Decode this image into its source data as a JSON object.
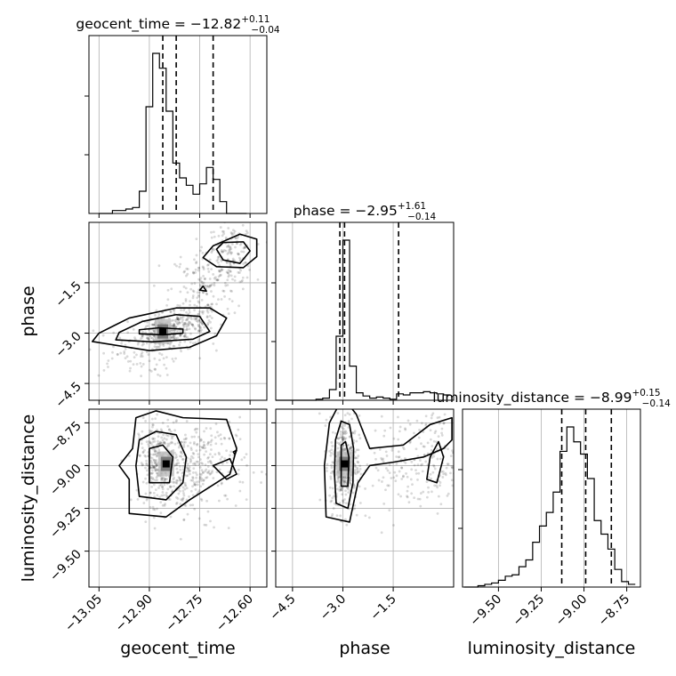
{
  "chart_data": {
    "type": "corner",
    "parameters": [
      "geocent_time",
      "phase",
      "luminosity_distance"
    ],
    "titles": [
      {
        "name": "geocent_time",
        "median": "−12.82",
        "plus": "+0.11",
        "minus": "−0.04"
      },
      {
        "name": "phase",
        "median": "−2.95",
        "plus": "+1.61",
        "minus": "−0.14"
      },
      {
        "name": "luminosity_distance",
        "median": "−8.99",
        "plus": "+0.15",
        "minus": "−0.14"
      }
    ],
    "axis_labels": {
      "x": [
        "geocent_time",
        "phase",
        "luminosity_distance"
      ],
      "y": [
        "phase",
        "luminosity_distance"
      ]
    },
    "ranges": {
      "geocent_time": [
        -13.08,
        -12.55
      ],
      "phase": [
        -5.0,
        0.3
      ],
      "luminosity_distance": [
        -9.71,
        -8.67
      ]
    },
    "ticks": {
      "geocent_time": {
        "values": [
          -13.05,
          -12.9,
          -12.75,
          -12.6
        ],
        "labels": [
          "−13.05",
          "−12.90",
          "−12.75",
          "−12.60"
        ]
      },
      "phase": {
        "values": [
          -4.5,
          -3.0,
          -1.5
        ],
        "labels": [
          "−4.5",
          "−3.0",
          "−1.5"
        ]
      },
      "luminosity_distance": {
        "values": [
          -9.5,
          -9.25,
          -9.0,
          -8.75
        ],
        "labels": [
          "−9.50",
          "−9.25",
          "−9.00",
          "−8.75"
        ]
      }
    },
    "quantiles": {
      "geocent_time": [
        -12.86,
        -12.82,
        -12.71
      ],
      "phase": [
        -3.09,
        -2.95,
        -1.34
      ],
      "luminosity_distance": [
        -9.13,
        -8.99,
        -8.84
      ]
    },
    "histograms": {
      "geocent_time": {
        "edges": [
          -13.05,
          -13.03,
          -13.01,
          -12.99,
          -12.97,
          -12.95,
          -12.93,
          -12.91,
          -12.89,
          -12.87,
          -12.85,
          -12.83,
          -12.81,
          -12.79,
          -12.77,
          -12.75,
          -12.73,
          -12.71,
          -12.69,
          -12.67,
          -12.65,
          -12.63,
          -12.61
        ],
        "counts": [
          0,
          0,
          2,
          2,
          3,
          4,
          15,
          72,
          108,
          98,
          69,
          34,
          24,
          19,
          13,
          20,
          31,
          23,
          8,
          0,
          0,
          0
        ]
      },
      "phase": {
        "edges": [
          -5.0,
          -4.8,
          -4.6,
          -4.4,
          -4.2,
          -4.0,
          -3.8,
          -3.6,
          -3.4,
          -3.2,
          -3.0,
          -2.8,
          -2.6,
          -2.4,
          -2.2,
          -2.0,
          -1.8,
          -1.6,
          -1.4,
          -1.2,
          -1.0,
          -0.8,
          -0.6,
          -0.4,
          -0.2,
          0.0,
          0.2
        ],
        "counts": [
          0,
          0,
          0,
          0,
          0,
          0,
          1,
          2,
          10,
          60,
          150,
          32,
          7,
          4,
          2,
          3,
          2,
          1,
          6,
          5,
          7,
          7,
          8,
          7,
          6,
          5
        ]
      },
      "luminosity_distance": {
        "edges": [
          -9.7,
          -9.66,
          -9.62,
          -9.58,
          -9.54,
          -9.5,
          -9.46,
          -9.42,
          -9.38,
          -9.34,
          -9.3,
          -9.26,
          -9.22,
          -9.18,
          -9.14,
          -9.1,
          -9.06,
          -9.02,
          -8.98,
          -8.94,
          -8.9,
          -8.86,
          -8.82,
          -8.78,
          -8.74,
          -8.7
        ],
        "counts": [
          0,
          0,
          1,
          2,
          3,
          5,
          8,
          9,
          15,
          20,
          33,
          45,
          55,
          70,
          100,
          118,
          107,
          98,
          80,
          49,
          39,
          28,
          13,
          4,
          2
        ]
      }
    },
    "samples": {
      "phase_vs_geocent_time": {
        "clusters": [
          {
            "mean": [
              -12.86,
              -2.95
            ],
            "sd": [
              0.03,
              0.25
            ],
            "n": 260
          },
          {
            "mean": [
              -12.79,
              -2.75
            ],
            "sd": [
              0.04,
              0.3
            ],
            "n": 140
          },
          {
            "mean": [
              -12.66,
              -0.65
            ],
            "sd": [
              0.035,
              0.45
            ],
            "n": 160
          },
          {
            "mean": [
              -12.74,
              -1.75
            ],
            "sd": [
              0.05,
              0.7
            ],
            "n": 160
          },
          {
            "mean": [
              -12.95,
              -3.6
            ],
            "sd": [
              0.07,
              0.35
            ],
            "n": 90
          }
        ],
        "density_peak": [
          -12.86,
          -2.95
        ],
        "contours": [
          [
            [
              -12.93,
              -3.02
            ],
            [
              -12.86,
              -3.05
            ],
            [
              -12.8,
              -3.0
            ],
            [
              -12.8,
              -2.88
            ],
            [
              -12.87,
              -2.84
            ],
            [
              -12.93,
              -2.9
            ]
          ],
          [
            [
              -13.0,
              -3.2
            ],
            [
              -12.89,
              -3.26
            ],
            [
              -12.77,
              -3.18
            ],
            [
              -12.72,
              -2.95
            ],
            [
              -12.75,
              -2.5
            ],
            [
              -12.82,
              -2.45
            ],
            [
              -12.92,
              -2.65
            ],
            [
              -12.99,
              -2.98
            ]
          ],
          [
            [
              -13.07,
              -3.25
            ],
            [
              -12.9,
              -3.52
            ],
            [
              -12.78,
              -3.42
            ],
            [
              -12.7,
              -3.08
            ],
            [
              -12.67,
              -2.55
            ],
            [
              -12.72,
              -2.25
            ],
            [
              -12.82,
              -2.25
            ],
            [
              -12.96,
              -2.55
            ],
            [
              -13.05,
              -3.0
            ]
          ],
          [
            [
              -12.68,
              -0.3
            ],
            [
              -12.62,
              -0.28
            ],
            [
              -12.6,
              -0.55
            ],
            [
              -12.63,
              -0.92
            ],
            [
              -12.68,
              -0.82
            ],
            [
              -12.7,
              -0.5
            ]
          ],
          [
            [
              -12.71,
              -0.4
            ],
            [
              -12.63,
              -0.05
            ],
            [
              -12.58,
              -0.2
            ],
            [
              -12.58,
              -0.72
            ],
            [
              -12.62,
              -1.05
            ],
            [
              -12.7,
              -1.02
            ],
            [
              -12.74,
              -0.75
            ]
          ],
          [
            [
              -12.75,
              -1.72
            ],
            [
              -12.74,
              -1.6
            ],
            [
              -12.73,
              -1.75
            ]
          ]
        ]
      },
      "luminosity_distance_vs_geocent_time": {
        "clusters": [
          {
            "mean": [
              -12.87,
              -8.99
            ],
            "sd": [
              0.03,
              0.12
            ],
            "n": 320
          },
          {
            "mean": [
              -12.73,
              -8.99
            ],
            "sd": [
              0.06,
              0.15
            ],
            "n": 200
          },
          {
            "mean": [
              -12.8,
              -9.05
            ],
            "sd": [
              0.04,
              0.12
            ],
            "n": 140
          }
        ],
        "density_peak": [
          -12.85,
          -8.99
        ],
        "contours": [
          [
            [
              -12.9,
              -9.1
            ],
            [
              -12.84,
              -9.1
            ],
            [
              -12.83,
              -8.95
            ],
            [
              -12.86,
              -8.88
            ],
            [
              -12.9,
              -8.9
            ]
          ],
          [
            [
              -12.93,
              -9.18
            ],
            [
              -12.85,
              -9.2
            ],
            [
              -12.8,
              -9.1
            ],
            [
              -12.79,
              -8.95
            ],
            [
              -12.82,
              -8.82
            ],
            [
              -12.88,
              -8.8
            ],
            [
              -12.93,
              -8.85
            ],
            [
              -12.94,
              -9.0
            ]
          ],
          [
            [
              -12.96,
              -9.28
            ],
            [
              -12.85,
              -9.3
            ],
            [
              -12.78,
              -9.2
            ],
            [
              -12.7,
              -9.1
            ],
            [
              -12.66,
              -9.05
            ],
            [
              -12.64,
              -8.9
            ],
            [
              -12.67,
              -8.73
            ],
            [
              -12.8,
              -8.72
            ],
            [
              -12.88,
              -8.68
            ],
            [
              -12.94,
              -8.72
            ],
            [
              -12.95,
              -8.9
            ],
            [
              -12.99,
              -9.0
            ],
            [
              -12.96,
              -9.08
            ]
          ],
          [
            [
              -12.71,
              -9.0
            ],
            [
              -12.66,
              -8.96
            ],
            [
              -12.64,
              -9.05
            ],
            [
              -12.67,
              -9.08
            ]
          ],
          [
            [
              -12.65,
              -8.92
            ],
            [
              -12.64,
              -8.91
            ],
            [
              -12.645,
              -8.935
            ]
          ]
        ]
      },
      "luminosity_distance_vs_phase": {
        "clusters": [
          {
            "mean": [
              -2.95,
              -8.99
            ],
            "sd": [
              0.22,
              0.14
            ],
            "n": 380
          },
          {
            "mean": [
              -1.0,
              -8.97
            ],
            "sd": [
              0.8,
              0.14
            ],
            "n": 180
          },
          {
            "mean": [
              -0.2,
              -8.95
            ],
            "sd": [
              0.25,
              0.15
            ],
            "n": 60
          }
        ],
        "density_peak": [
          -2.95,
          -8.99
        ],
        "contours": [
          [
            [
              -3.05,
              -9.12
            ],
            [
              -2.85,
              -9.12
            ],
            [
              -2.82,
              -8.95
            ],
            [
              -2.92,
              -8.86
            ],
            [
              -3.05,
              -8.88
            ]
          ],
          [
            [
              -3.2,
              -9.22
            ],
            [
              -2.85,
              -9.25
            ],
            [
              -2.7,
              -9.1
            ],
            [
              -2.68,
              -8.9
            ],
            [
              -2.8,
              -8.76
            ],
            [
              -3.05,
              -8.74
            ],
            [
              -3.22,
              -8.85
            ],
            [
              -3.25,
              -9.05
            ]
          ],
          [
            [
              -3.5,
              -9.3
            ],
            [
              -2.8,
              -9.33
            ],
            [
              -2.55,
              -9.1
            ],
            [
              -2.2,
              -9.0
            ],
            [
              -1.5,
              -8.98
            ],
            [
              -0.6,
              -8.95
            ],
            [
              0.0,
              -8.9
            ],
            [
              0.25,
              -8.85
            ],
            [
              0.25,
              -8.72
            ],
            [
              -0.4,
              -8.76
            ],
            [
              -1.2,
              -8.88
            ],
            [
              -2.2,
              -8.9
            ],
            [
              -2.6,
              -8.7
            ],
            [
              -3.0,
              -8.6
            ],
            [
              -3.4,
              -8.75
            ],
            [
              -3.55,
              -9.0
            ]
          ],
          [
            [
              -0.5,
              -9.08
            ],
            [
              -0.2,
              -9.1
            ],
            [
              0.0,
              -8.95
            ],
            [
              -0.15,
              -8.86
            ],
            [
              -0.4,
              -8.95
            ]
          ]
        ]
      }
    }
  }
}
